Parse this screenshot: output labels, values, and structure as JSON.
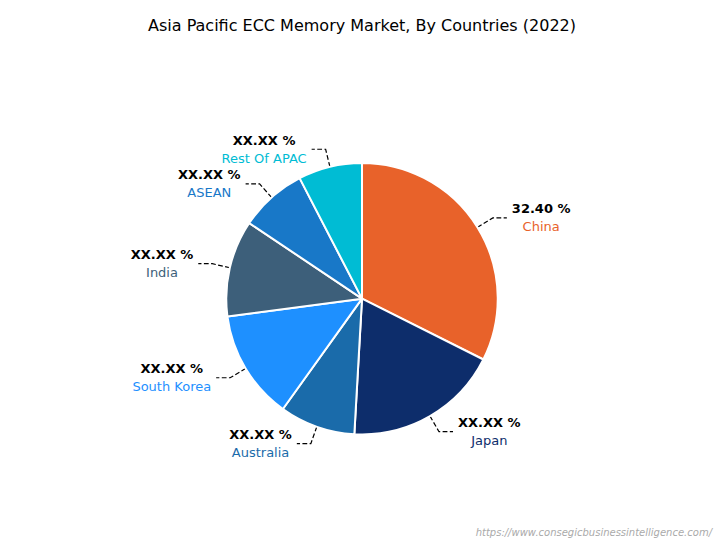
{
  "chart_data": {
    "type": "pie",
    "title": "Asia Pacific ECC Memory Market, By Countries (2022)",
    "categories": [
      "China",
      "Japan",
      "Australia",
      "South Korea",
      "India",
      "ASEAN",
      "Rest Of APAC"
    ],
    "values": [
      32.4,
      18.5,
      9.0,
      13.0,
      11.5,
      8.0,
      7.6
    ],
    "value_labels": [
      "32.40 %",
      "XX.XX %",
      "XX.XX %",
      "XX.XX %",
      "XX.XX %",
      "XX.XX %",
      "XX.XX %"
    ],
    "colors": [
      "#E8622A",
      "#0D2D6B",
      "#1A6BAA",
      "#1E90FF",
      "#3D5F7A",
      "#1878C8",
      "#00BCD4"
    ],
    "data_labels": true,
    "annotations": [
      "https://www.consegicbusinessintelligence.com/"
    ]
  }
}
